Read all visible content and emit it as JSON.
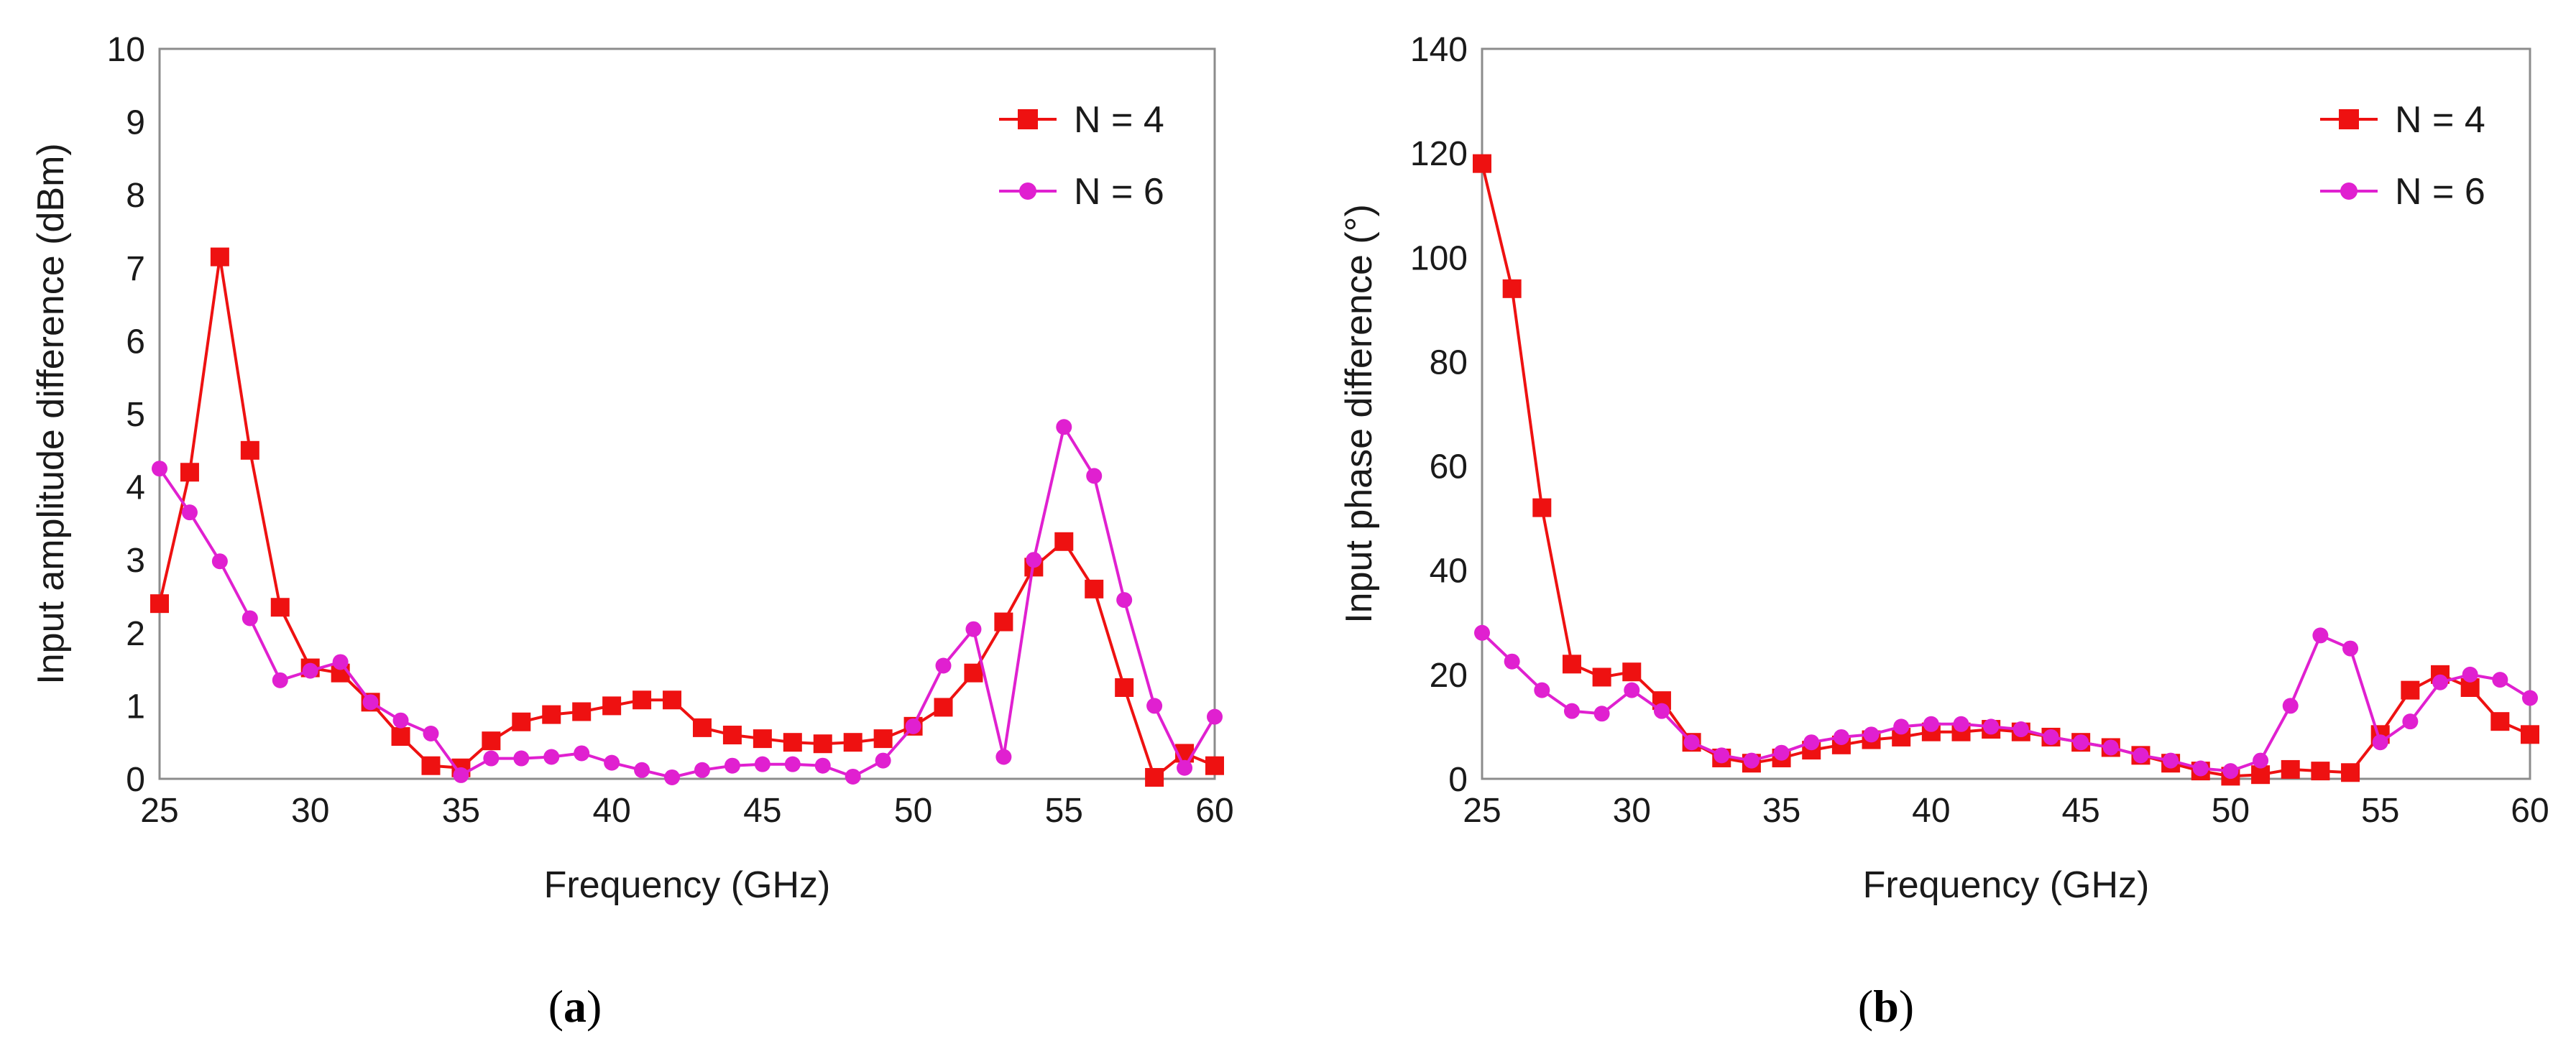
{
  "chart_data": [
    {
      "type": "line",
      "panel": "a",
      "panel_label": "a",
      "xlabel": "Frequency (GHz)",
      "ylabel": "Input amplitude difference (dBm)",
      "xlim": [
        25,
        60
      ],
      "ylim": [
        0,
        10
      ],
      "xticks": [
        25,
        30,
        35,
        40,
        45,
        50,
        55,
        60
      ],
      "yticks": [
        0,
        1,
        2,
        3,
        4,
        5,
        6,
        7,
        8,
        9,
        10
      ],
      "grid": false,
      "legend_position": "top-right",
      "x": [
        25,
        26,
        27,
        28,
        29,
        30,
        31,
        32,
        33,
        34,
        35,
        36,
        37,
        38,
        39,
        40,
        41,
        42,
        43,
        44,
        45,
        46,
        47,
        48,
        49,
        50,
        51,
        52,
        53,
        54,
        55,
        56,
        57,
        58,
        59,
        60
      ],
      "series": [
        {
          "name": "N = 4",
          "color": "#ee1111",
          "marker": "square",
          "values": [
            2.4,
            4.2,
            7.15,
            4.5,
            2.35,
            1.52,
            1.45,
            1.05,
            0.58,
            0.18,
            0.15,
            0.52,
            0.78,
            0.88,
            0.92,
            1.0,
            1.08,
            1.08,
            0.7,
            0.6,
            0.55,
            0.5,
            0.48,
            0.5,
            0.55,
            0.72,
            0.98,
            1.45,
            2.15,
            2.9,
            3.25,
            2.6,
            1.25,
            0.02,
            0.35,
            0.18
          ]
        },
        {
          "name": "N = 6",
          "color": "#e020d0",
          "marker": "circle",
          "values": [
            4.25,
            3.65,
            2.98,
            2.2,
            1.35,
            1.48,
            1.6,
            1.05,
            0.8,
            0.62,
            0.05,
            0.28,
            0.28,
            0.3,
            0.35,
            0.22,
            0.12,
            0.02,
            0.12,
            0.18,
            0.2,
            0.2,
            0.18,
            0.03,
            0.25,
            0.72,
            1.55,
            2.05,
            0.3,
            3.0,
            4.82,
            4.15,
            2.45,
            1.0,
            0.15,
            0.85
          ]
        }
      ]
    },
    {
      "type": "line",
      "panel": "b",
      "panel_label": "b",
      "xlabel": "Frequency (GHz)",
      "ylabel": "Input phase difference (°)",
      "xlim": [
        25,
        60
      ],
      "ylim": [
        0,
        140
      ],
      "xticks": [
        25,
        30,
        35,
        40,
        45,
        50,
        55,
        60
      ],
      "yticks": [
        0,
        20,
        40,
        60,
        80,
        100,
        120,
        140
      ],
      "grid": false,
      "legend_position": "top-right",
      "x": [
        25,
        26,
        27,
        28,
        29,
        30,
        31,
        32,
        33,
        34,
        35,
        36,
        37,
        38,
        39,
        40,
        41,
        42,
        43,
        44,
        45,
        46,
        47,
        48,
        49,
        50,
        51,
        52,
        53,
        54,
        55,
        56,
        57,
        58,
        59,
        60
      ],
      "series": [
        {
          "name": "N = 4",
          "color": "#ee1111",
          "marker": "square",
          "values": [
            118,
            94,
            52,
            22,
            19.5,
            20.5,
            15,
            7,
            4,
            3,
            4,
            5.5,
            6.5,
            7.5,
            8,
            9,
            9,
            9.5,
            9,
            8,
            7,
            6,
            4.5,
            3,
            1.5,
            0.5,
            0.8,
            1.8,
            1.5,
            1.2,
            8.5,
            17,
            20,
            17.5,
            11,
            8.5
          ]
        },
        {
          "name": "N = 6",
          "color": "#e020d0",
          "marker": "circle",
          "values": [
            28,
            22.5,
            17,
            13,
            12.5,
            17,
            13,
            7,
            4.5,
            3.5,
            5,
            7,
            8,
            8.5,
            10,
            10.5,
            10.5,
            10,
            9.5,
            8,
            7,
            6,
            4.5,
            3.5,
            2,
            1.5,
            3.5,
            14,
            27.5,
            25,
            7,
            11,
            18.5,
            20,
            19,
            15.5
          ]
        }
      ]
    }
  ]
}
